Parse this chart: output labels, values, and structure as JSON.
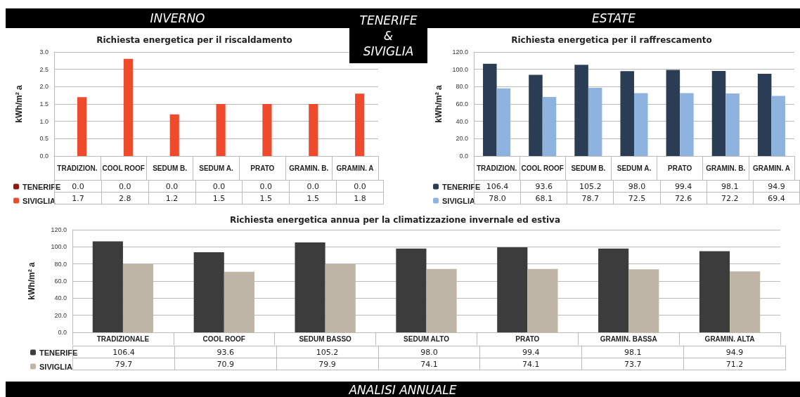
{
  "chart_data": [
    {
      "type": "bar",
      "title": "Richiesta energetica per il riscaldamento",
      "ylabel": "kWh/m² a",
      "annotations": [
        "INVERNO",
        "TENERIFE & SIVIGLIA"
      ],
      "categories": [
        "TRADIZION.",
        "COOL ROOF",
        "SEDUM B.",
        "SEDUM A.",
        "PRATO",
        "GRAMIN. B.",
        "GRAMIN. A"
      ],
      "series": [
        {
          "name": "TENERIFE",
          "color": "#8b1a10",
          "values": [
            0.0,
            0.0,
            0.0,
            0.0,
            0.0,
            0.0,
            0.0
          ],
          "value_labels": [
            "0.0",
            "0.0",
            "0.0",
            "0.0",
            "0.0",
            "0.0",
            "0.0"
          ]
        },
        {
          "name": "SIVIGLIA",
          "color": "#f04a2c",
          "values": [
            1.7,
            2.8,
            1.2,
            1.5,
            1.5,
            1.5,
            1.8
          ],
          "value_labels": [
            "1.7",
            "2.8",
            "1.2",
            "1.5",
            "1.5",
            "1.5",
            "1.8"
          ]
        }
      ],
      "ylim": [
        0,
        3
      ],
      "yticks": [
        {
          "value": 0,
          "label": "0.0"
        },
        {
          "value": 0.5,
          "label": "0.5"
        },
        {
          "value": 1,
          "label": "1.0"
        },
        {
          "value": 1.5,
          "label": "1.5"
        },
        {
          "value": 2,
          "label": "2.0"
        },
        {
          "value": 2.5,
          "label": "2.5"
        },
        {
          "value": 3,
          "label": "3.0"
        }
      ],
      "grid": "y",
      "legend": "bottom left"
    },
    {
      "type": "bar",
      "title": "Richiesta energetica per il raffrescamento",
      "ylabel": "kWh/m² a",
      "annotations": [
        "ESTATE"
      ],
      "categories": [
        "TRADIZION.",
        "COOL ROOF",
        "SEDUM B.",
        "SEDUM A.",
        "PRATO",
        "GRAMIN. B.",
        "GRAMIN. A"
      ],
      "series": [
        {
          "name": "TENERIFE",
          "color": "#2b3d55",
          "values": [
            106.4,
            93.6,
            105.2,
            98.0,
            99.4,
            98.1,
            94.9
          ],
          "value_labels": [
            "106.4",
            "93.6",
            "105.2",
            "98.0",
            "99.4",
            "98.1",
            "94.9"
          ]
        },
        {
          "name": "SIVIGLIA",
          "color": "#8db3de",
          "values": [
            78.0,
            68.1,
            78.7,
            72.5,
            72.6,
            72.2,
            69.4
          ],
          "value_labels": [
            "78.0",
            "68.1",
            "78.7",
            "72.5",
            "72.6",
            "72.2",
            "69.4"
          ]
        }
      ],
      "ylim": [
        0,
        120
      ],
      "yticks": [
        {
          "value": 0,
          "label": "0.0"
        },
        {
          "value": 20,
          "label": "20.0"
        },
        {
          "value": 40,
          "label": "40.0"
        },
        {
          "value": 60,
          "label": "60.0"
        },
        {
          "value": 80,
          "label": "80.0"
        },
        {
          "value": 100,
          "label": "100.0"
        },
        {
          "value": 120,
          "label": "120.0"
        }
      ],
      "grid": "y",
      "legend": "bottom left"
    },
    {
      "type": "bar",
      "title": "Richiesta energetica annua per la climatizzazione invernale ed estiva",
      "ylabel": "kWh/m² a",
      "annotations": [
        "ANALISI ANNUALE"
      ],
      "categories": [
        "TRADIZIONALE",
        "COOL ROOF",
        "SEDUM BASSO",
        "SEDUM ALTO",
        "PRATO",
        "GRAMIN. BASSA",
        "GRAMIN. ALTA"
      ],
      "series": [
        {
          "name": "TENERIFE",
          "color": "#3c3c3c",
          "values": [
            106.4,
            93.6,
            105.2,
            98.0,
            99.4,
            98.1,
            94.9
          ],
          "value_labels": [
            "106.4",
            "93.6",
            "105.2",
            "98.0",
            "99.4",
            "98.1",
            "94.9"
          ]
        },
        {
          "name": "SIVIGLIA",
          "color": "#beb5a7",
          "values": [
            79.7,
            70.9,
            79.9,
            74.1,
            74.1,
            73.7,
            71.2
          ],
          "value_labels": [
            "79.7",
            "70.9",
            "79.9",
            "74.1",
            "74.1",
            "73.7",
            "71.2"
          ]
        }
      ],
      "ylim": [
        0,
        120
      ],
      "yticks": [
        {
          "value": 0,
          "label": "0.0"
        },
        {
          "value": 20,
          "label": "20.0"
        },
        {
          "value": 40,
          "label": "40.0"
        },
        {
          "value": 60,
          "label": "60.0"
        },
        {
          "value": 80,
          "label": "80.0"
        },
        {
          "value": 100,
          "label": "100.0"
        },
        {
          "value": 120,
          "label": "120.0"
        }
      ],
      "grid": "y",
      "legend": "bottom left"
    }
  ]
}
